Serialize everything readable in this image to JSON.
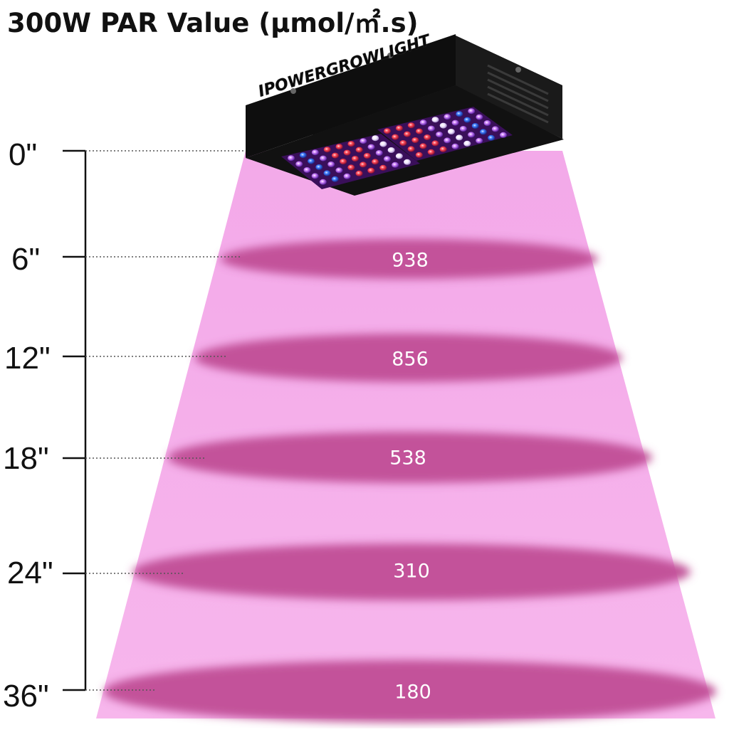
{
  "title": "300W PAR Value (µmol/㎡.s)",
  "brand": "IPOWERGROWLIGHT",
  "colors": {
    "beam": "#f2a6e6",
    "ring": "#c04d96",
    "housing": "#1a1a1a",
    "text_dark": "#111111"
  },
  "measurements": [
    {
      "distance": "0\"",
      "par": ""
    },
    {
      "distance": "6\"",
      "par": "938"
    },
    {
      "distance": "12\"",
      "par": "856"
    },
    {
      "distance": "18\"",
      "par": "538"
    },
    {
      "distance": "24\"",
      "par": "310"
    },
    {
      "distance": "36\"",
      "par": "180"
    }
  ]
}
